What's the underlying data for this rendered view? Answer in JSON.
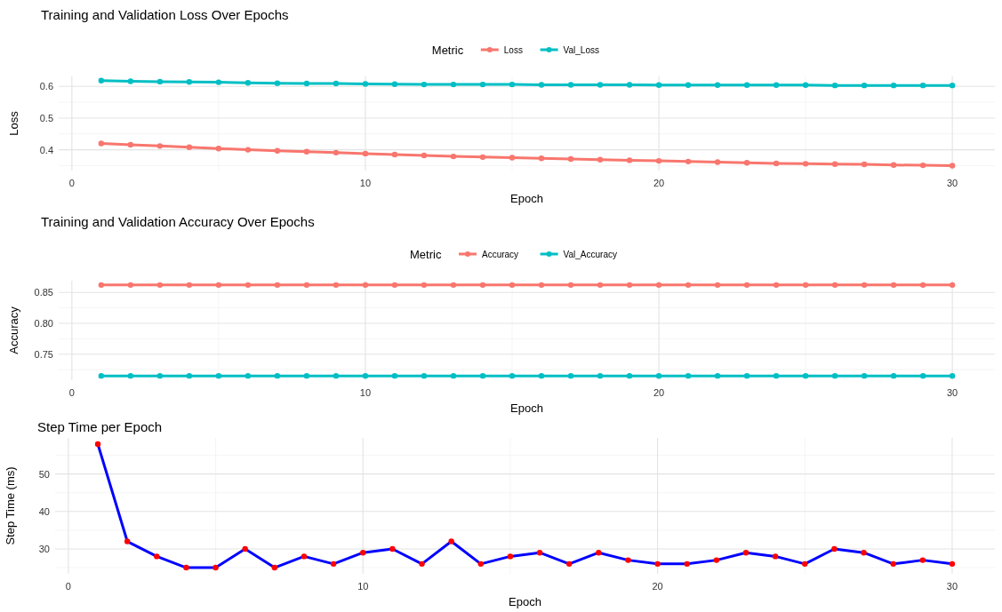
{
  "chart_data": [
    {
      "type": "line",
      "title": "Training and Validation Loss Over Epochs",
      "xlabel": "Epoch",
      "ylabel": "Loss",
      "legend_title": "Metric",
      "legend": "top",
      "grid": true,
      "marker": "circle",
      "line_style": "solid",
      "x": [
        1,
        2,
        3,
        4,
        5,
        6,
        7,
        8,
        9,
        10,
        11,
        12,
        13,
        14,
        15,
        16,
        17,
        18,
        19,
        20,
        21,
        22,
        23,
        24,
        25,
        26,
        27,
        28,
        29,
        30
      ],
      "xlim": [
        -0.45,
        31.45
      ],
      "xticks": [
        0,
        10,
        20,
        30
      ],
      "ylim": [
        0.3345,
        0.6315
      ],
      "yticks": [
        0.4,
        0.5,
        0.6
      ],
      "series": [
        {
          "name": "Loss",
          "color": "#f8766d",
          "values": [
            0.42,
            0.416,
            0.412,
            0.408,
            0.404,
            0.4,
            0.397,
            0.394,
            0.391,
            0.388,
            0.385,
            0.382,
            0.379,
            0.377,
            0.375,
            0.373,
            0.371,
            0.369,
            0.367,
            0.365,
            0.363,
            0.361,
            0.359,
            0.357,
            0.356,
            0.355,
            0.354,
            0.352,
            0.351,
            0.35
          ]
        },
        {
          "name": "Val_Loss",
          "color": "#00bfc4",
          "values": [
            0.618,
            0.616,
            0.615,
            0.614,
            0.613,
            0.611,
            0.61,
            0.609,
            0.609,
            0.608,
            0.607,
            0.606,
            0.606,
            0.606,
            0.606,
            0.605,
            0.605,
            0.605,
            0.605,
            0.604,
            0.604,
            0.604,
            0.604,
            0.604,
            0.604,
            0.603,
            0.603,
            0.603,
            0.603,
            0.603
          ]
        }
      ]
    },
    {
      "type": "line",
      "title": "Training and Validation Accuracy Over Epochs",
      "xlabel": "Epoch",
      "ylabel": "Accuracy",
      "legend_title": "Metric",
      "legend": "top",
      "grid": true,
      "marker": "circle",
      "line_style": "solid",
      "x": [
        1,
        2,
        3,
        4,
        5,
        6,
        7,
        8,
        9,
        10,
        11,
        12,
        13,
        14,
        15,
        16,
        17,
        18,
        19,
        20,
        21,
        22,
        23,
        24,
        25,
        26,
        27,
        28,
        29,
        30
      ],
      "xlim": [
        -0.45,
        31.45
      ],
      "xticks": [
        0,
        10,
        20,
        30
      ],
      "ylim": [
        0.708,
        0.869
      ],
      "yticks": [
        0.75,
        {
          "value": 0.8,
          "label": "0.80"
        },
        0.85
      ],
      "series": [
        {
          "name": "Accuracy",
          "color": "#f8766d",
          "values": [
            0.862,
            0.862,
            0.862,
            0.862,
            0.862,
            0.862,
            0.862,
            0.862,
            0.862,
            0.862,
            0.862,
            0.862,
            0.862,
            0.862,
            0.862,
            0.862,
            0.862,
            0.862,
            0.862,
            0.862,
            0.862,
            0.862,
            0.862,
            0.862,
            0.862,
            0.862,
            0.862,
            0.862,
            0.862,
            0.862
          ]
        },
        {
          "name": "Val_Accuracy",
          "color": "#00bfc4",
          "values": [
            0.715,
            0.715,
            0.715,
            0.715,
            0.715,
            0.715,
            0.715,
            0.715,
            0.715,
            0.715,
            0.715,
            0.715,
            0.715,
            0.715,
            0.715,
            0.715,
            0.715,
            0.715,
            0.715,
            0.715,
            0.715,
            0.715,
            0.715,
            0.715,
            0.715,
            0.715,
            0.715,
            0.715,
            0.715,
            0.715
          ]
        }
      ]
    },
    {
      "type": "line",
      "title": "Step Time per Epoch",
      "xlabel": "Epoch",
      "ylabel": "Step Time (ms)",
      "grid": true,
      "marker": "circle",
      "line_style": "solid",
      "x": [
        1,
        2,
        3,
        4,
        5,
        6,
        7,
        8,
        9,
        10,
        11,
        12,
        13,
        14,
        15,
        16,
        17,
        18,
        19,
        20,
        21,
        22,
        23,
        24,
        25,
        26,
        27,
        28,
        29,
        30
      ],
      "xlim": [
        -0.45,
        31.45
      ],
      "xticks": [
        0,
        10,
        20,
        30
      ],
      "ylim": [
        23.35,
        59.65
      ],
      "yticks": [
        30,
        40,
        50
      ],
      "series": [
        {
          "color": "#0000ff",
          "colors": [
            "#ff0000",
            "#ff0000",
            "#ff0000",
            "#ff0000",
            "#ff0000",
            "#ff0000",
            "#ff0000",
            "#ff0000",
            "#ff0000",
            "#ff0000",
            "#ff0000",
            "#ff0000",
            "#ff0000",
            "#ff0000",
            "#ff0000",
            "#ff0000",
            "#ff0000",
            "#ff0000",
            "#ff0000",
            "#ff0000",
            "#ff0000",
            "#ff0000",
            "#ff0000",
            "#ff0000",
            "#ff0000",
            "#ff0000",
            "#ff0000",
            "#ff0000",
            "#ff0000",
            "#ff0000"
          ],
          "values": [
            58,
            32,
            28,
            25,
            25,
            30,
            25,
            28,
            26,
            29,
            30,
            26,
            32,
            26,
            28,
            29,
            26,
            29,
            27,
            26,
            26,
            27,
            29,
            28,
            26,
            30,
            29,
            26,
            27,
            26
          ]
        }
      ]
    }
  ]
}
